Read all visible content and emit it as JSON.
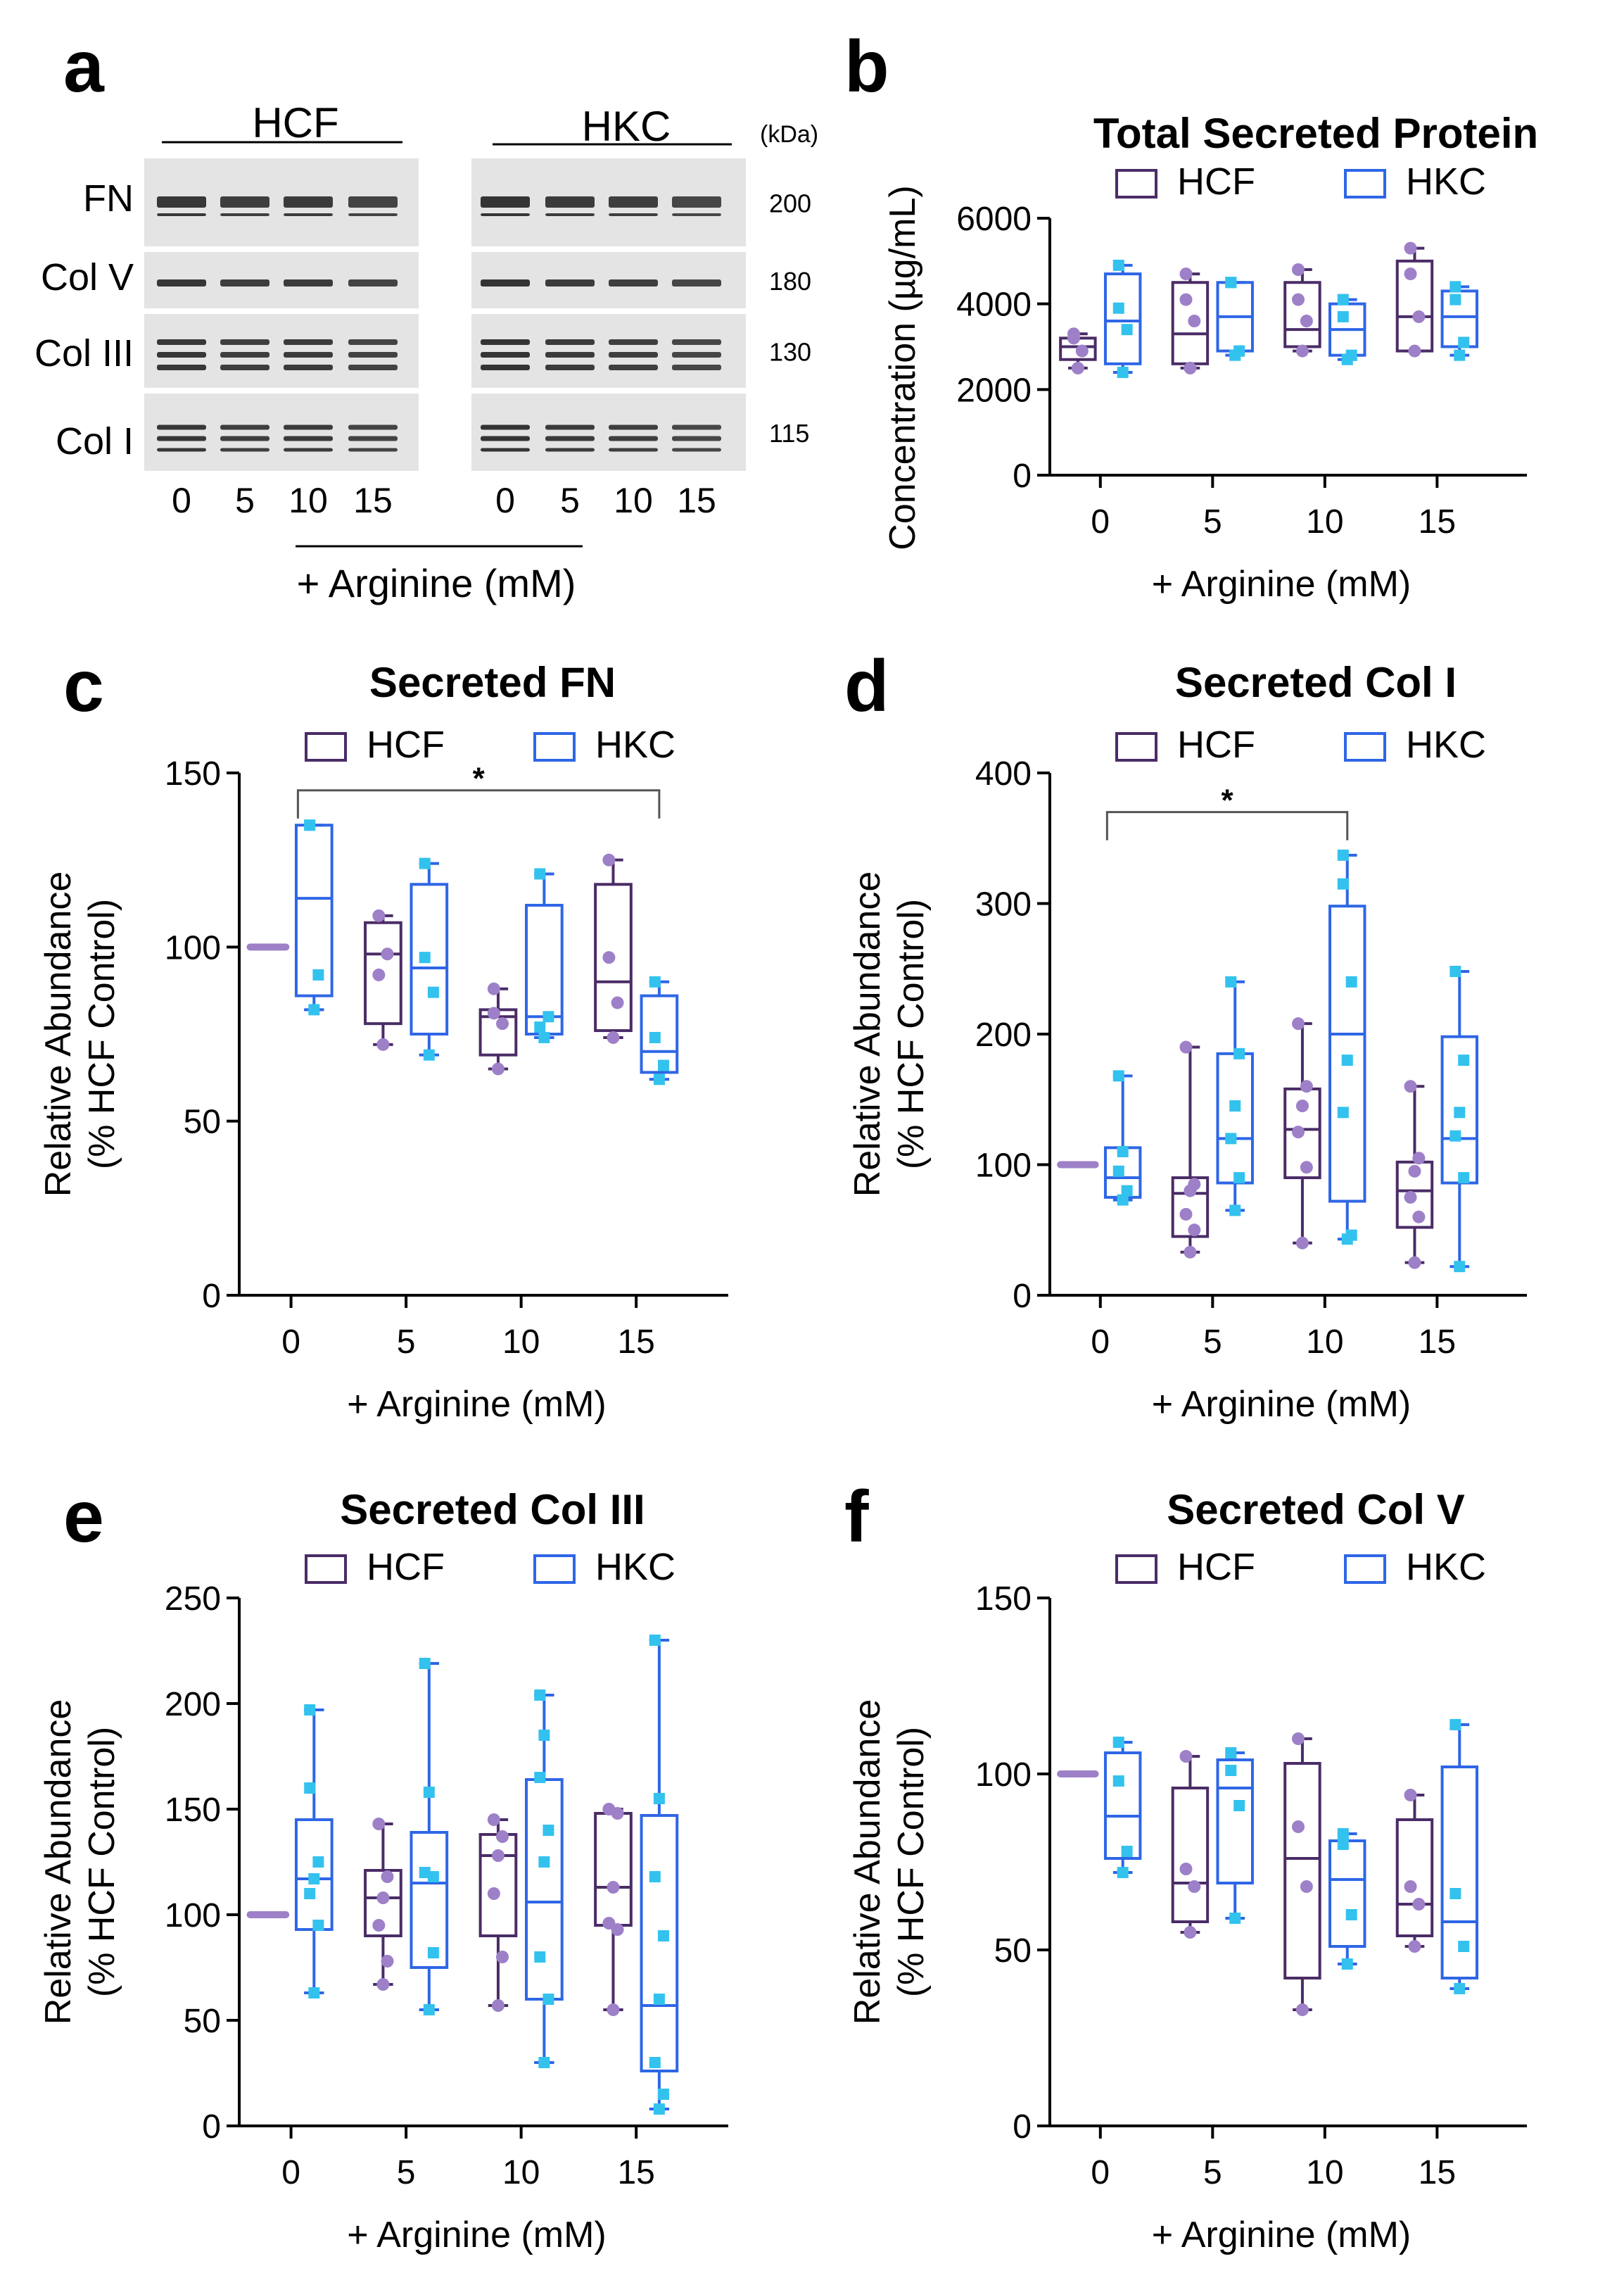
{
  "figure": {
    "panel_labels": {
      "a": "a",
      "b": "b",
      "c": "c",
      "d": "d",
      "e": "e",
      "f": "f"
    },
    "colors": {
      "hcf": "#4a2c66",
      "hcf_point": "#9d80c8",
      "hkc": "#2e66e6",
      "hkc_point": "#33c2ee",
      "axis": "#000000",
      "blot_bg": "#e4e4e4",
      "blot_band": "#2a2a2a"
    }
  },
  "blot": {
    "groups": [
      "HCF",
      "HKC"
    ],
    "kda_header": "(kDa)",
    "rows": [
      {
        "label": "FN",
        "kda": "200"
      },
      {
        "label": "Col V",
        "kda": "180"
      },
      {
        "label": "Col III",
        "kda": "130"
      },
      {
        "label": "Col I",
        "kda": "115"
      }
    ],
    "lanes": [
      "0",
      "5",
      "10",
      "15",
      "0",
      "5",
      "10",
      "15"
    ],
    "xlabel": "+ Arginine (mM)"
  },
  "chart_data": [
    {
      "id": "b",
      "type": "box",
      "title": "Total Secreted Protein",
      "xlabel": "+ Arginine (mM)",
      "ylabel": "Concentration (µg/mL)",
      "ylim": [
        0,
        6000
      ],
      "yticks": [
        "0",
        "2000",
        "4000",
        "6000"
      ],
      "categories": [
        "0",
        "5",
        "10",
        "15"
      ],
      "legend": [
        "HCF",
        "HKC"
      ],
      "significance": null,
      "series": [
        {
          "name": "HCF",
          "boxes": [
            {
              "min": 2500,
              "q1": 2700,
              "median": 3000,
              "q3": 3200,
              "max": 3300,
              "points": [
                3300,
                2500,
                2900,
                3200
              ]
            },
            {
              "min": 2500,
              "q1": 2600,
              "median": 3300,
              "q3": 4500,
              "max": 4700,
              "points": [
                4700,
                2500,
                3600,
                4100
              ]
            },
            {
              "min": 2900,
              "q1": 3000,
              "median": 3400,
              "q3": 4500,
              "max": 4800,
              "points": [
                4800,
                2900,
                3600,
                4100
              ]
            },
            {
              "min": 2900,
              "q1": 2900,
              "median": 3700,
              "q3": 5000,
              "max": 5300,
              "points": [
                5300,
                2900,
                3700,
                4700
              ]
            }
          ]
        },
        {
          "name": "HKC",
          "boxes": [
            {
              "min": 2400,
              "q1": 2600,
              "median": 3600,
              "q3": 4700,
              "max": 4900,
              "points": [
                4900,
                2400,
                3400,
                3900
              ]
            },
            {
              "min": 2800,
              "q1": 2900,
              "median": 3700,
              "q3": 4500,
              "max": 4500,
              "points": [
                4500,
                2800,
                2900,
                4500
              ]
            },
            {
              "min": 2700,
              "q1": 2800,
              "median": 3400,
              "q3": 4000,
              "max": 4100,
              "points": [
                4100,
                2700,
                2800,
                3700
              ]
            },
            {
              "min": 2800,
              "q1": 3000,
              "median": 3700,
              "q3": 4300,
              "max": 4400,
              "points": [
                4400,
                2800,
                3100,
                4100
              ]
            }
          ]
        }
      ]
    },
    {
      "id": "c",
      "type": "box",
      "title": "Secreted FN",
      "xlabel": "+ Arginine (mM)",
      "ylabel": "Relative Abundance",
      "ylabel2": "(% HCF Control)",
      "ylim": [
        0,
        150
      ],
      "yticks": [
        "0",
        "50",
        "100",
        "150"
      ],
      "categories": [
        "0",
        "5",
        "10",
        "15"
      ],
      "legend": [
        "HCF",
        "HKC"
      ],
      "significance": {
        "from_cat": 0,
        "to_cat": 3,
        "y": 145,
        "label": "*"
      },
      "series": [
        {
          "name": "HCF",
          "boxes": [
            {
              "control": true,
              "value": 100
            },
            {
              "min": 72,
              "q1": 78,
              "median": 98,
              "q3": 107,
              "max": 109,
              "points": [
                109,
                72,
                98,
                92
              ]
            },
            {
              "min": 65,
              "q1": 69,
              "median": 80,
              "q3": 82,
              "max": 88,
              "points": [
                88,
                65,
                78,
                81
              ]
            },
            {
              "min": 74,
              "q1": 76,
              "median": 90,
              "q3": 118,
              "max": 125,
              "points": [
                125,
                74,
                84,
                97
              ]
            }
          ]
        },
        {
          "name": "HKC",
          "boxes": [
            {
              "min": 82,
              "q1": 86,
              "median": 114,
              "q3": 135,
              "max": 135,
              "points": [
                135,
                82,
                92,
                135
              ]
            },
            {
              "min": 69,
              "q1": 75,
              "median": 94,
              "q3": 118,
              "max": 124,
              "points": [
                124,
                69,
                87,
                97
              ]
            },
            {
              "min": 74,
              "q1": 75,
              "median": 80,
              "q3": 112,
              "max": 121,
              "points": [
                121,
                74,
                80,
                77
              ]
            },
            {
              "min": 62,
              "q1": 64,
              "median": 70,
              "q3": 86,
              "max": 90,
              "points": [
                90,
                62,
                66,
                74
              ]
            }
          ]
        }
      ]
    },
    {
      "id": "d",
      "type": "box",
      "title": "Secreted Col I",
      "xlabel": "+ Arginine (mM)",
      "ylabel": "Relative Abundance",
      "ylabel2": "(% HCF Control)",
      "ylim": [
        0,
        400
      ],
      "yticks": [
        "0",
        "100",
        "200",
        "300",
        "400"
      ],
      "categories": [
        "0",
        "5",
        "10",
        "15"
      ],
      "legend": [
        "HCF",
        "HKC"
      ],
      "significance": {
        "from_cat": 0,
        "to_cat": 2,
        "y": 370,
        "label": "*"
      },
      "series": [
        {
          "name": "HCF",
          "boxes": [
            {
              "control": true,
              "value": 100
            },
            {
              "min": 33,
              "q1": 45,
              "median": 78,
              "q3": 90,
              "max": 190,
              "points": [
                190,
                33,
                50,
                62,
                80,
                85
              ]
            },
            {
              "min": 40,
              "q1": 90,
              "median": 127,
              "q3": 158,
              "max": 208,
              "points": [
                208,
                40,
                98,
                125,
                145,
                160
              ]
            },
            {
              "min": 25,
              "q1": 52,
              "median": 80,
              "q3": 102,
              "max": 160,
              "points": [
                160,
                25,
                60,
                75,
                95,
                105
              ]
            }
          ]
        },
        {
          "name": "HKC",
          "boxes": [
            {
              "min": 73,
              "q1": 75,
              "median": 90,
              "q3": 113,
              "max": 168,
              "points": [
                168,
                73,
                80,
                95,
                110
              ]
            },
            {
              "min": 65,
              "q1": 86,
              "median": 120,
              "q3": 185,
              "max": 240,
              "points": [
                240,
                65,
                90,
                120,
                145,
                185
              ]
            },
            {
              "min": 43,
              "q1": 72,
              "median": 200,
              "q3": 298,
              "max": 337,
              "points": [
                337,
                43,
                46,
                140,
                180,
                240,
                315
              ]
            },
            {
              "min": 22,
              "q1": 86,
              "median": 120,
              "q3": 198,
              "max": 248,
              "points": [
                248,
                22,
                90,
                122,
                140,
                180
              ]
            }
          ]
        }
      ]
    },
    {
      "id": "e",
      "type": "box",
      "title": "Secreted Col III",
      "xlabel": "+ Arginine (mM)",
      "ylabel": "Relative Abundance",
      "ylabel2": "(% HCF Control)",
      "ylim": [
        0,
        250
      ],
      "yticks": [
        "0",
        "50",
        "100",
        "150",
        "200",
        "250"
      ],
      "categories": [
        "0",
        "5",
        "10",
        "15"
      ],
      "legend": [
        "HCF",
        "HKC"
      ],
      "significance": null,
      "series": [
        {
          "name": "HCF",
          "boxes": [
            {
              "control": true,
              "value": 100
            },
            {
              "min": 67,
              "q1": 90,
              "median": 108,
              "q3": 121,
              "max": 143,
              "points": [
                143,
                67,
                78,
                95,
                108,
                118
              ]
            },
            {
              "min": 57,
              "q1": 90,
              "median": 128,
              "q3": 138,
              "max": 145,
              "points": [
                145,
                57,
                80,
                110,
                128,
                137
              ]
            },
            {
              "min": 55,
              "q1": 95,
              "median": 113,
              "q3": 148,
              "max": 150,
              "points": [
                150,
                55,
                93,
                96,
                113,
                148
              ]
            }
          ]
        },
        {
          "name": "HKC",
          "boxes": [
            {
              "min": 63,
              "q1": 93,
              "median": 117,
              "q3": 145,
              "max": 197,
              "points": [
                197,
                63,
                95,
                110,
                117,
                125,
                160
              ]
            },
            {
              "min": 55,
              "q1": 75,
              "median": 115,
              "q3": 139,
              "max": 219,
              "points": [
                219,
                55,
                82,
                120,
                158,
                118
              ]
            },
            {
              "min": 30,
              "q1": 60,
              "median": 106,
              "q3": 164,
              "max": 204,
              "points": [
                204,
                30,
                60,
                80,
                125,
                140,
                165,
                185
              ]
            },
            {
              "min": 8,
              "q1": 26,
              "median": 57,
              "q3": 147,
              "max": 230,
              "points": [
                230,
                8,
                15,
                30,
                60,
                90,
                118,
                155
              ]
            }
          ]
        }
      ]
    },
    {
      "id": "f",
      "type": "box",
      "title": "Secreted Col V",
      "xlabel": "+ Arginine (mM)",
      "ylabel": "Relative Abundance",
      "ylabel2": "(% HCF Control)",
      "ylim": [
        0,
        150
      ],
      "yticks": [
        "0",
        "50",
        "100",
        "150"
      ],
      "categories": [
        "0",
        "5",
        "10",
        "15"
      ],
      "legend": [
        "HCF",
        "HKC"
      ],
      "significance": null,
      "series": [
        {
          "name": "HCF",
          "boxes": [
            {
              "control": true,
              "value": 100
            },
            {
              "min": 55,
              "q1": 58,
              "median": 69,
              "q3": 96,
              "max": 105,
              "points": [
                105,
                55,
                68,
                73
              ]
            },
            {
              "min": 33,
              "q1": 42,
              "median": 76,
              "q3": 103,
              "max": 110,
              "points": [
                110,
                33,
                68,
                85
              ]
            },
            {
              "min": 51,
              "q1": 54,
              "median": 63,
              "q3": 87,
              "max": 94,
              "points": [
                94,
                51,
                63,
                68
              ]
            }
          ]
        },
        {
          "name": "HKC",
          "boxes": [
            {
              "min": 72,
              "q1": 76,
              "median": 88,
              "q3": 106,
              "max": 109,
              "points": [
                109,
                72,
                78,
                98
              ]
            },
            {
              "min": 59,
              "q1": 69,
              "median": 96,
              "q3": 104,
              "max": 106,
              "points": [
                106,
                59,
                91,
                101
              ]
            },
            {
              "min": 46,
              "q1": 51,
              "median": 70,
              "q3": 81,
              "max": 83,
              "points": [
                83,
                46,
                60,
                80
              ]
            },
            {
              "min": 39,
              "q1": 42,
              "median": 58,
              "q3": 102,
              "max": 114,
              "points": [
                114,
                39,
                51,
                66
              ]
            }
          ]
        }
      ]
    }
  ]
}
